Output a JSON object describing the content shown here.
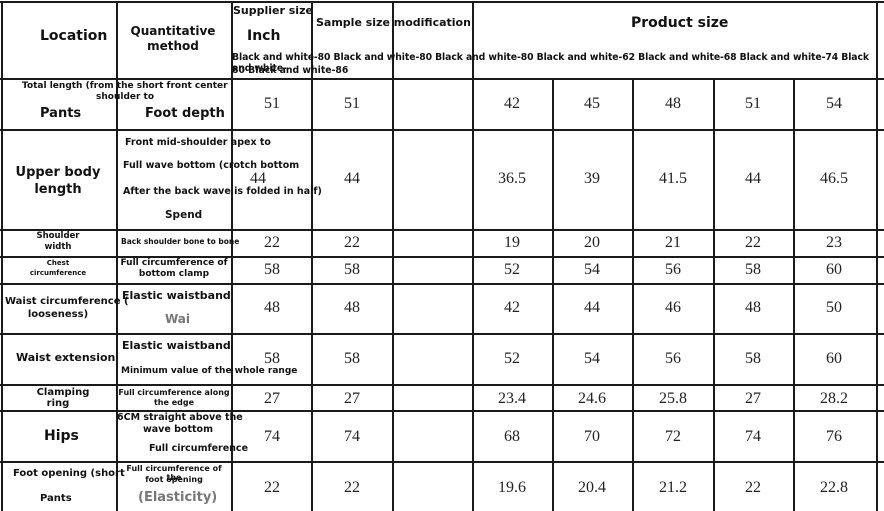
{
  "header": {
    "location": "Location",
    "method": "Quantitative method",
    "supplier_size": "Supplier size",
    "inch": "Inch",
    "sample_mod": "Sample size modification",
    "product_size": "Product size",
    "sizes_line1": "Black and white-80 Black and white-80 Black and white-80 Black and white-62 Black and white-68 Black and white-74 Black and white-",
    "sizes_line2": "80 Black and white-86"
  },
  "rows": [
    {
      "loc": [
        "Total length (from the short front center",
        "shoulder to",
        "Pants"
      ],
      "method": [
        "Foot depth"
      ],
      "supplier": "51",
      "sample": "51",
      "product": [
        "42",
        "45",
        "48",
        "51",
        "54"
      ]
    },
    {
      "loc": [
        "Upper body",
        "length"
      ],
      "method": [
        "Front mid-shoulder apex to",
        "Full wave bottom (crotch bottom",
        "After the back wave is folded in half)",
        "Spend"
      ],
      "supplier": "44",
      "sample": "44",
      "product": [
        "36.5",
        "39",
        "41.5",
        "44",
        "46.5"
      ]
    },
    {
      "loc": [
        "Shoulder",
        "width"
      ],
      "method": [
        "Back shoulder bone to bone"
      ],
      "supplier": "22",
      "sample": "22",
      "product": [
        "19",
        "20",
        "21",
        "22",
        "23"
      ]
    },
    {
      "loc": [
        "Chest",
        "circumference"
      ],
      "method": [
        "Full circumference of",
        "bottom clamp"
      ],
      "supplier": "58",
      "sample": "58",
      "product": [
        "52",
        "54",
        "56",
        "58",
        "60"
      ]
    },
    {
      "loc": [
        "Waist circumference (",
        "looseness)"
      ],
      "method": [
        "Elastic waistband",
        "Wai"
      ],
      "supplier": "48",
      "sample": "48",
      "product": [
        "42",
        "44",
        "46",
        "48",
        "50"
      ]
    },
    {
      "loc": [
        "Waist extension"
      ],
      "method": [
        "Elastic waistband",
        "Minimum value of the whole range"
      ],
      "supplier": "58",
      "sample": "58",
      "product": [
        "52",
        "54",
        "56",
        "58",
        "60"
      ]
    },
    {
      "loc": [
        "Clamping",
        "ring"
      ],
      "method": [
        "Full circumference along",
        "the edge"
      ],
      "supplier": "27",
      "sample": "27",
      "product": [
        "23.4",
        "24.6",
        "25.8",
        "27",
        "28.2"
      ]
    },
    {
      "loc": [
        "Hips"
      ],
      "method": [
        "6CM straight above the",
        "wave bottom",
        "Full circumference"
      ],
      "supplier": "74",
      "sample": "74",
      "product": [
        "68",
        "70",
        "72",
        "74",
        "76"
      ]
    },
    {
      "loc": [
        "Foot opening (short",
        "Pants"
      ],
      "method": [
        "Full circumference of the",
        "foot opening",
        "(Elasticity)"
      ],
      "supplier": "22",
      "sample": "22",
      "product": [
        "19.6",
        "20.4",
        "21.2",
        "22",
        "22.8"
      ]
    }
  ]
}
